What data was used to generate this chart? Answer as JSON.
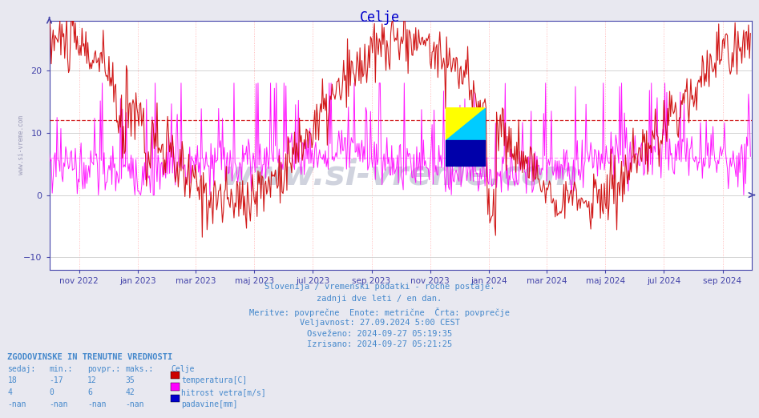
{
  "title": "Celje",
  "title_color": "#0000cc",
  "bg_color": "#e8e8f0",
  "plot_bg_color": "#ffffff",
  "grid_color_h": "#cccccc",
  "grid_color_v": "#ffaaaa",
  "axis_color": "#4444aa",
  "text_color": "#4488cc",
  "ylim": [
    -12,
    28
  ],
  "yticks": [
    -10,
    0,
    10,
    20
  ],
  "xlim": [
    0,
    730
  ],
  "x_tick_days": [
    31,
    92,
    152,
    213,
    274,
    335,
    396,
    457,
    517,
    578,
    639,
    700
  ],
  "x_tick_labels": [
    "nov 2022",
    "jan 2023",
    "mar 2023",
    "maj 2023",
    "jul 2023",
    "sep 2023",
    "nov 2023",
    "jan 2024",
    "mar 2024",
    "maj 2024",
    "jul 2024",
    "sep 2024"
  ],
  "hline_red_y": 12,
  "hline_pink_y": 6,
  "hline_red_color": "#cc0000",
  "hline_pink_color": "#ff88ff",
  "temp_color": "#cc0000",
  "wind_color": "#ff00ff",
  "precip_color": "#0000cc",
  "watermark_color": "#2a3a6a",
  "side_watermark_color": "#8888aa",
  "footer_lines": [
    "Slovenija / vremenski podatki - ročne postaje.",
    "zadnji dve leti / en dan.",
    "Meritve: povprečne  Enote: metrične  Črta: povprečje",
    "Veljavnost: 27.09.2024 5:00 CEST",
    "Osveženo: 2024-09-27 05:19:35",
    "Izrisano: 2024-09-27 05:21:25"
  ],
  "legend_title": "ZGODOVINSKE IN TRENUTNE VREDNOSTI",
  "legend_header": [
    "sedaj:",
    "min.:",
    "povpr.:",
    "maks.:",
    "Celje"
  ],
  "legend_rows": [
    {
      "values": [
        "18",
        "-17",
        "12",
        "35"
      ],
      "label": "temperatura[C]",
      "color": "#cc0000"
    },
    {
      "values": [
        "4",
        "0",
        "6",
        "42"
      ],
      "label": "hitrost vetra[m/s]",
      "color": "#ff00ff"
    },
    {
      "values": [
        "-nan",
        "-nan",
        "-nan",
        "-nan"
      ],
      "label": "padavine[mm]",
      "color": "#0000cc"
    }
  ]
}
